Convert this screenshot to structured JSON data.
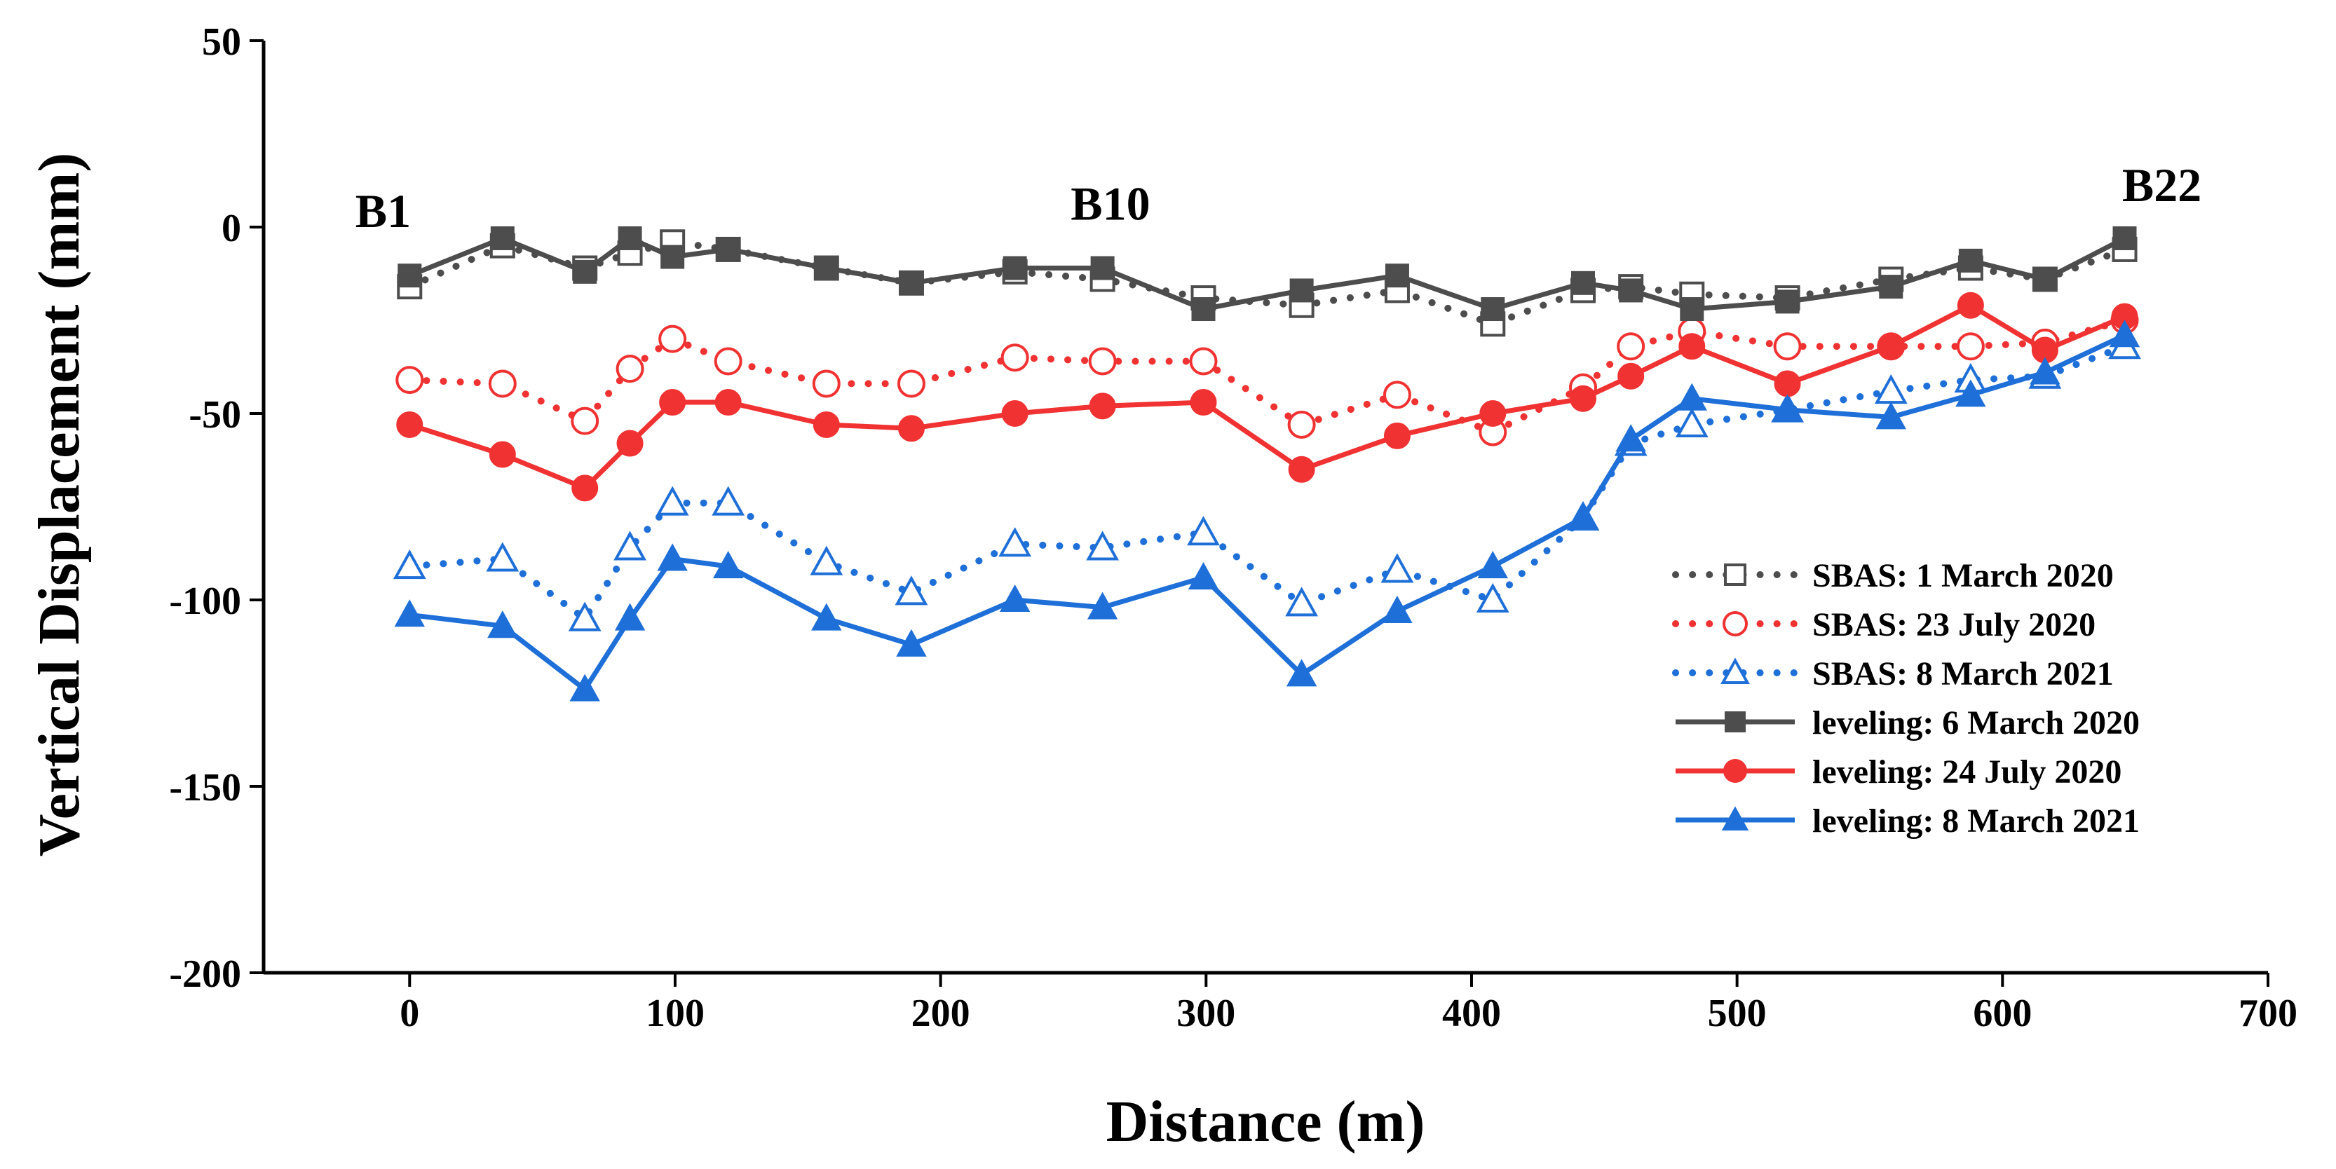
{
  "chart_data": {
    "type": "line",
    "title": "",
    "xlabel": "Distance (m)",
    "ylabel": "Vertical Displacement (mm)",
    "xlim": [
      -55,
      700
    ],
    "ylim": [
      -200,
      50
    ],
    "xticks": [
      0,
      100,
      200,
      300,
      400,
      500,
      600,
      700
    ],
    "yticks": [
      50,
      0,
      -50,
      -100,
      -150,
      -200
    ],
    "legend_position": "right",
    "annotations": [
      {
        "text": "B1",
        "x": -10,
        "y": 0
      },
      {
        "text": "B10",
        "x": 264,
        "y": 2
      },
      {
        "text": "B22",
        "x": 660,
        "y": 7
      }
    ],
    "x": [
      0,
      35,
      66,
      83,
      99,
      120,
      157,
      189,
      228,
      261,
      299,
      336,
      372,
      408,
      442,
      460,
      483,
      519,
      558,
      588,
      616,
      646
    ],
    "series": [
      {
        "name": "SBAS: 1 March 2020",
        "color": "#4d4d4d",
        "style": "dotted",
        "marker": "open-square",
        "values": [
          -16,
          -5,
          -11,
          -7,
          -4,
          -6,
          -11,
          -15,
          -12,
          -14,
          -19,
          -21,
          -17,
          -26,
          -17,
          -16,
          -18,
          -19,
          -14,
          -11,
          -14,
          -6
        ]
      },
      {
        "name": "SBAS: 23 July 2020",
        "color": "#f03232",
        "style": "dotted",
        "marker": "open-circle",
        "values": [
          -41,
          -42,
          -52,
          -38,
          -30,
          -36,
          -42,
          -42,
          -35,
          -36,
          -36,
          -53,
          -45,
          -55,
          -43,
          -32,
          -28,
          -32,
          -32,
          -32,
          -31,
          -25
        ]
      },
      {
        "name": "SBAS: 8 March 2021",
        "color": "#1e6fd8",
        "style": "dotted",
        "marker": "open-triangle",
        "values": [
          -91,
          -89,
          -105,
          -86,
          -74,
          -74,
          -90,
          -98,
          -85,
          -86,
          -82,
          -101,
          -92,
          -100,
          -78,
          -58,
          -53,
          -49,
          -44,
          -41,
          -40,
          -32
        ]
      },
      {
        "name": "leveling: 6 March 2020",
        "color": "#4d4d4d",
        "style": "solid",
        "marker": "filled-square",
        "values": [
          -13,
          -3,
          -12,
          -3,
          -8,
          -6,
          -11,
          -15,
          -11,
          -11,
          -22,
          -17,
          -13,
          -22,
          -15,
          -17,
          -22,
          -20,
          -16,
          -9,
          -14,
          -3
        ]
      },
      {
        "name": "leveling: 24 July 2020",
        "color": "#f03232",
        "style": "solid",
        "marker": "filled-circle",
        "values": [
          -53,
          -61,
          -70,
          -58,
          -47,
          -47,
          -53,
          -54,
          -50,
          -48,
          -47,
          -65,
          -56,
          -50,
          -46,
          -40,
          -32,
          -42,
          -32,
          -21,
          -33,
          -24
        ]
      },
      {
        "name": "leveling: 8 March 2021",
        "color": "#1e6fd8",
        "style": "solid",
        "marker": "filled-triangle",
        "values": [
          -104,
          -107,
          -124,
          -105,
          -89,
          -91,
          -105,
          -112,
          -100,
          -102,
          -94,
          -120,
          -103,
          -91,
          -78,
          -57,
          -46,
          -49,
          -51,
          -45,
          -39,
          -29
        ]
      }
    ]
  }
}
